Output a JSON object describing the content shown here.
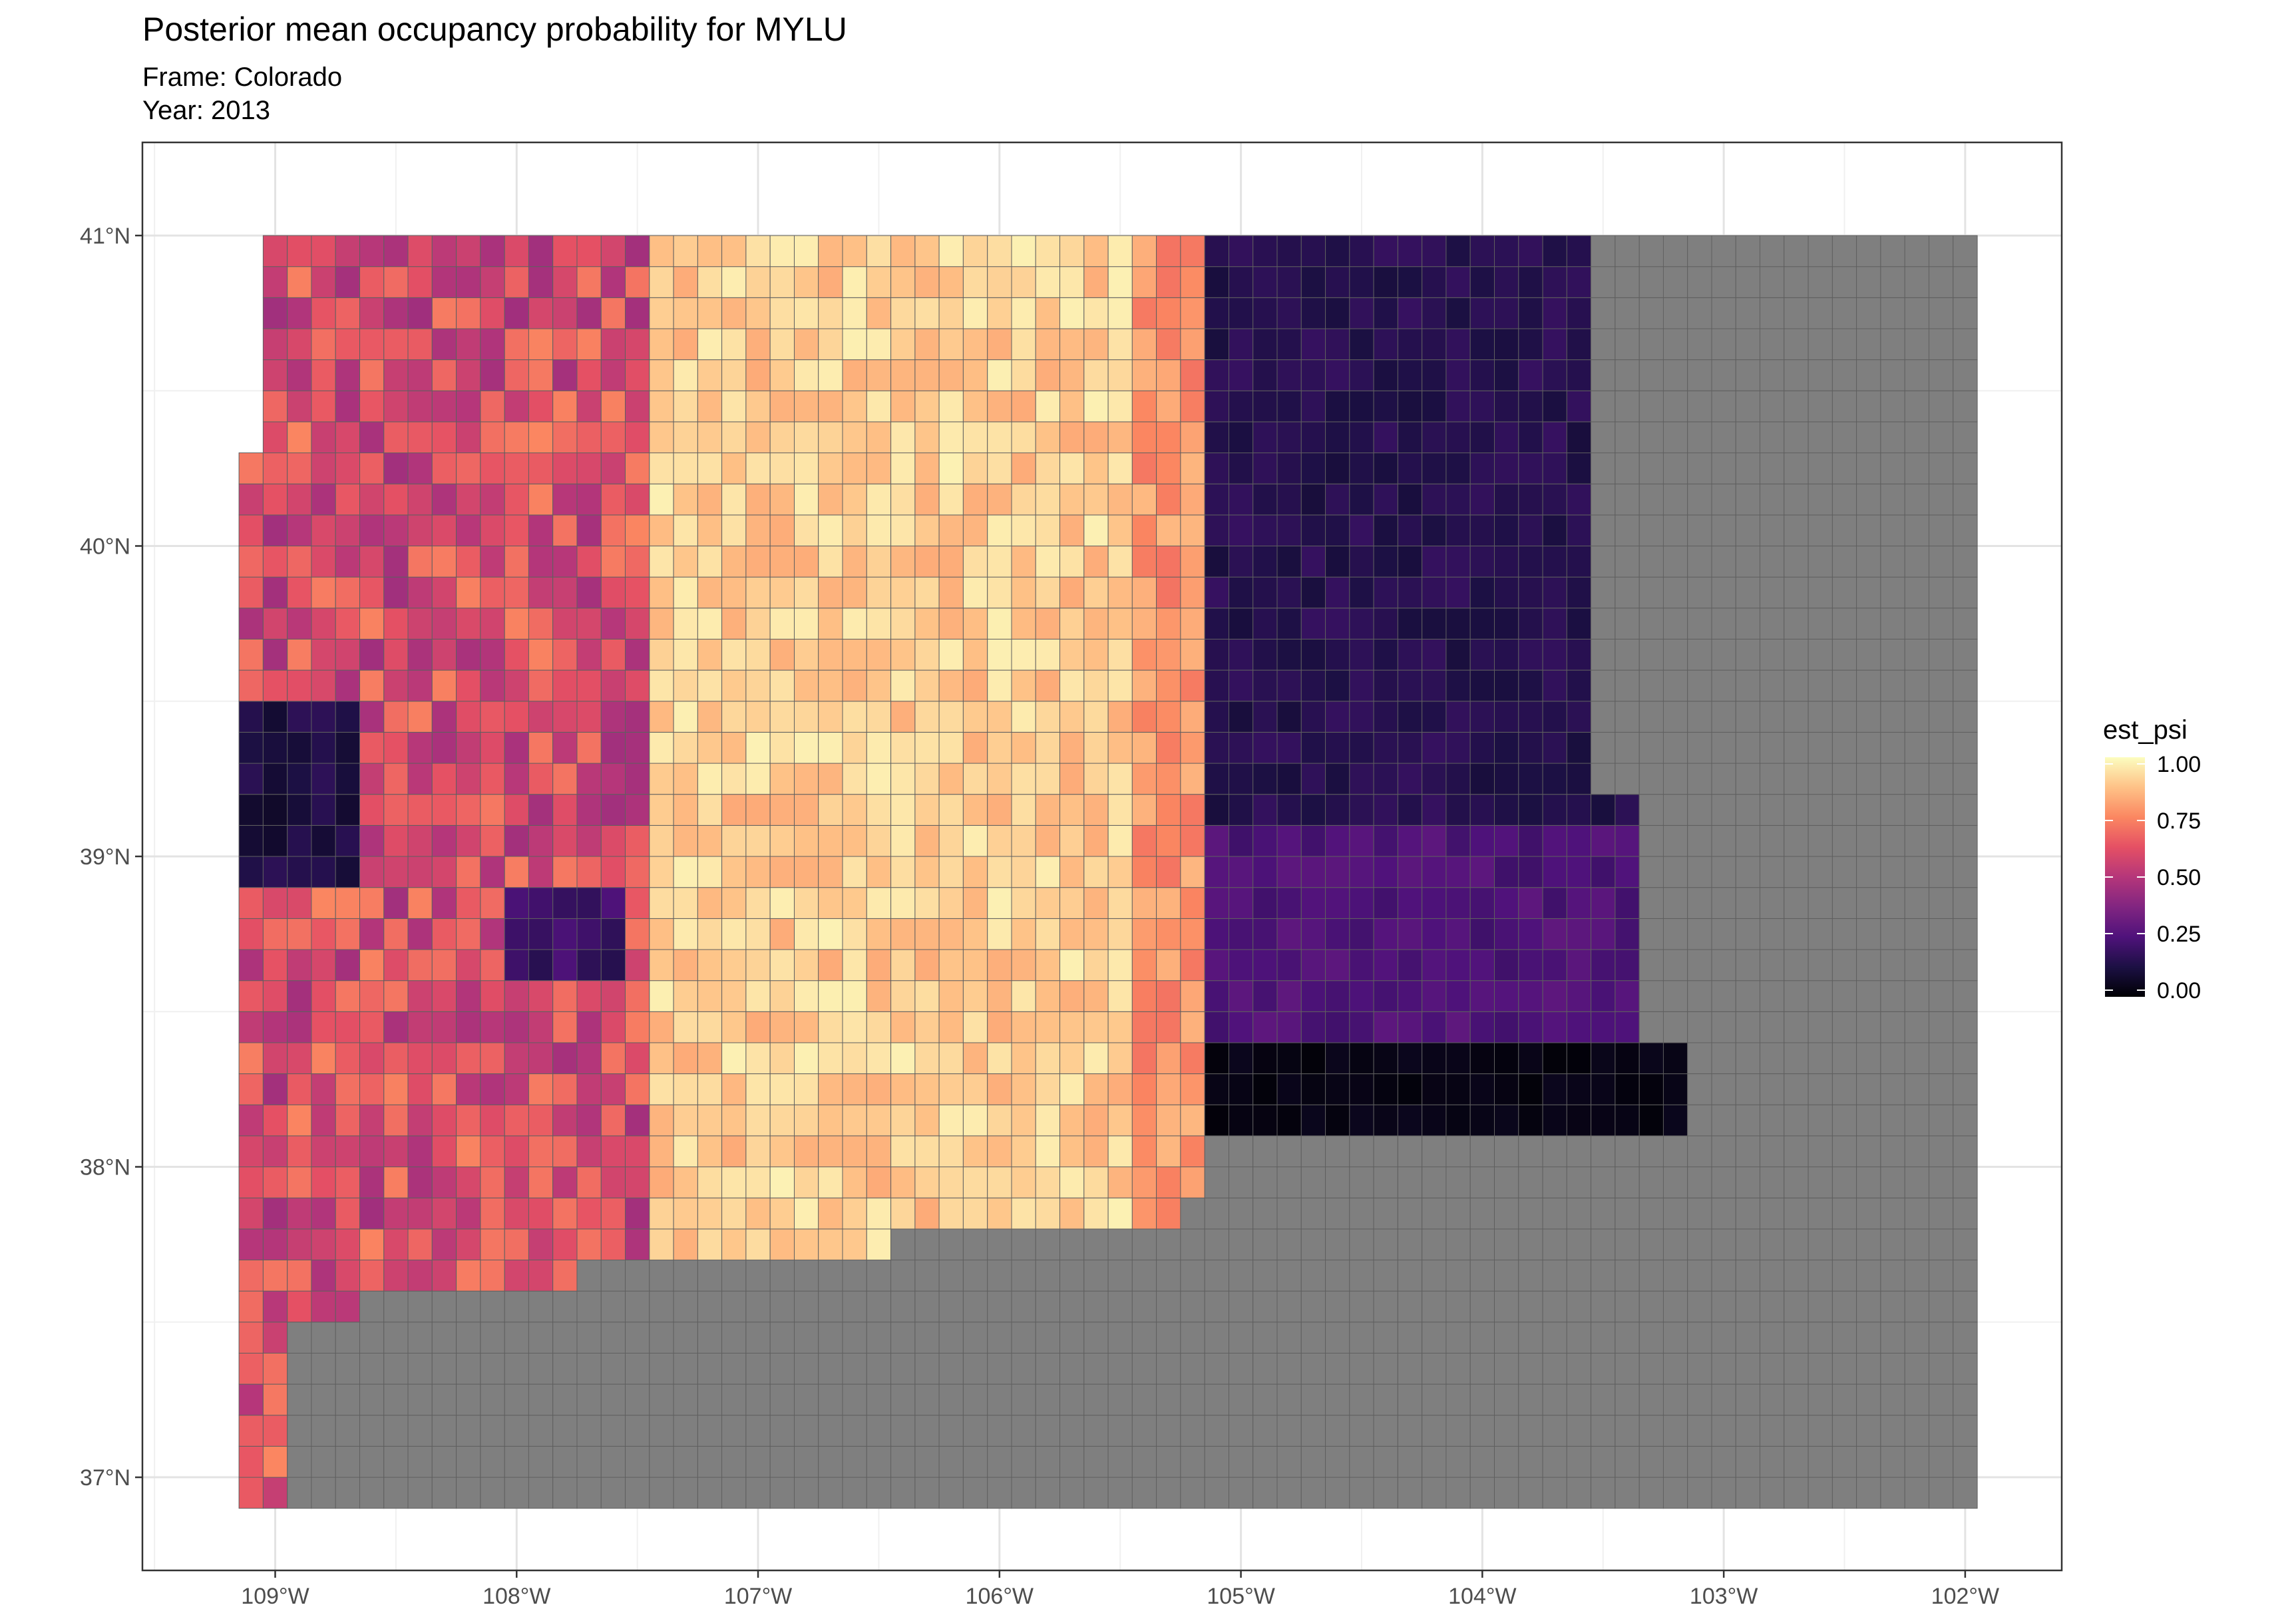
{
  "title": "Posterior mean occupancy probability for MYLU",
  "subtitle_frame": "Frame: Colorado",
  "subtitle_year": "Year: 2013",
  "map": {
    "lon_range": [
      -109.55,
      -101.6
    ],
    "lat_range": [
      36.7,
      41.3
    ],
    "x_ticks": [
      {
        "value": -109,
        "label": "109°W"
      },
      {
        "value": -108,
        "label": "108°W"
      },
      {
        "value": -107,
        "label": "107°W"
      },
      {
        "value": -106,
        "label": "106°W"
      },
      {
        "value": -105,
        "label": "105°W"
      },
      {
        "value": -104,
        "label": "104°W"
      },
      {
        "value": -103,
        "label": "103°W"
      },
      {
        "value": -102,
        "label": "102°W"
      }
    ],
    "y_ticks": [
      {
        "value": 41,
        "label": "41°N"
      },
      {
        "value": 40,
        "label": "40°N"
      },
      {
        "value": 39,
        "label": "39°N"
      },
      {
        "value": 38,
        "label": "38°N"
      },
      {
        "value": 37,
        "label": "37°N"
      }
    ],
    "grid": true,
    "missing_color": "#7f7f7f",
    "cell_border_color": "#5f5f5f"
  },
  "legend": {
    "title": "est_psi",
    "placement": "right",
    "palette": "magma",
    "ticks": [
      "1.00",
      "0.75",
      "0.50",
      "0.25",
      "0.00"
    ],
    "range": [
      0,
      1
    ]
  },
  "chart_data": {
    "type": "heatmap",
    "title": "Posterior mean occupancy probability for MYLU",
    "subtitle": [
      "Frame: Colorado",
      "Year: 2013"
    ],
    "xlabel": "",
    "ylabel": "",
    "value_name": "est_psi",
    "value_range": [
      0,
      1
    ],
    "grid_extent": {
      "lon": [
        -109.15,
        -101.95
      ],
      "lat": [
        36.9,
        41.05
      ]
    },
    "observed_extent_east_lon": -103.2,
    "regions_approx": [
      {
        "region": "east of ~105.2°W, north of ~38.4°N",
        "est_psi": 0.15
      },
      {
        "region": "east of ~105.2°W, ~38.1–38.4°N",
        "est_psi": 0.03
      },
      {
        "region": "central mountains ~105.4–107.5°W",
        "est_psi": 0.9
      },
      {
        "region": "western slope ~107.5–109°W",
        "est_psi": 0.6
      },
      {
        "region": "southwest ~108.7–109.1°W, ~38.9–39.5°N",
        "est_psi": 0.12
      },
      {
        "region": "south of ~38.1°N and east of ~103.2°W",
        "est_psi": null
      }
    ]
  }
}
